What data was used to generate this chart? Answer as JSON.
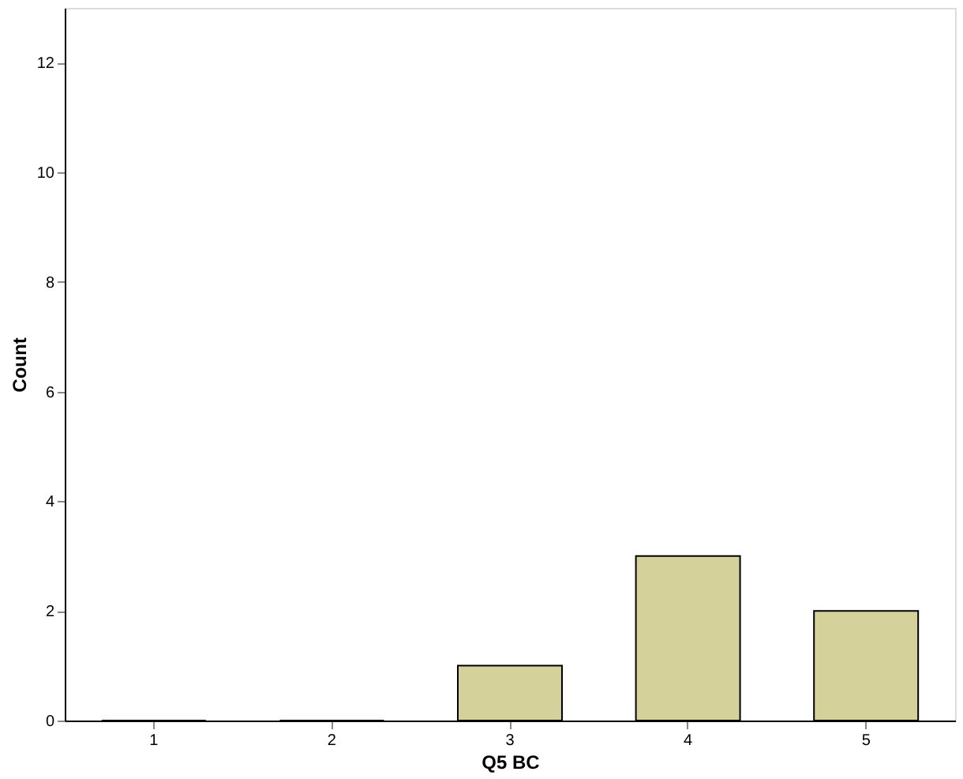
{
  "chart_data": {
    "type": "bar",
    "xlabel": "Q5 BC",
    "ylabel": "Count",
    "categories": [
      "1",
      "2",
      "3",
      "4",
      "5"
    ],
    "values": [
      0,
      0,
      1,
      3,
      2
    ],
    "color": "#d4d19a",
    "ylim": [
      0,
      13
    ],
    "yticks": [
      0,
      2,
      4,
      6,
      8,
      10,
      12
    ],
    "grid": false
  }
}
